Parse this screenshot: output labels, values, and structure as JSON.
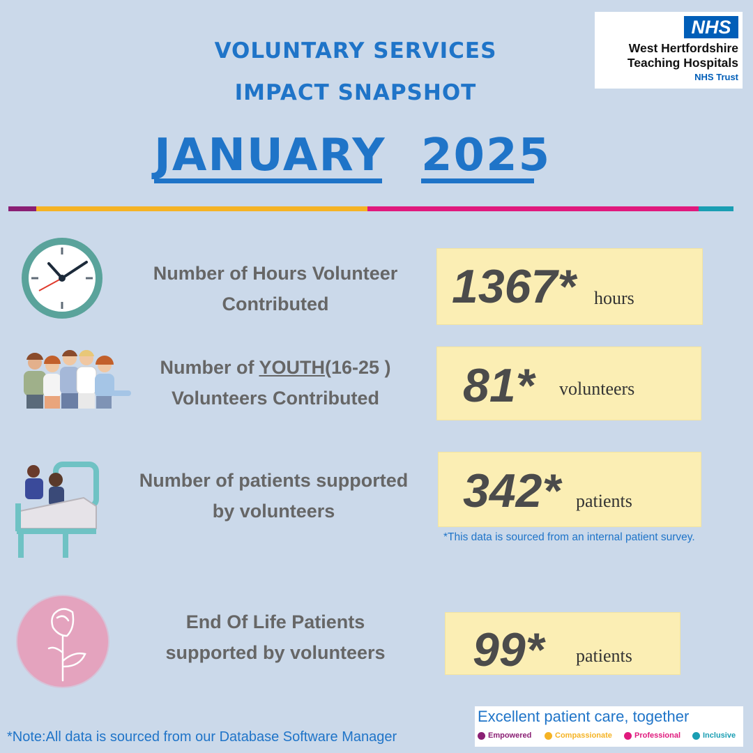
{
  "header": {
    "title_line1": "VOLUNTARY SERVICES",
    "title_line2": "IMPACT SNAPSHOT",
    "month": "JANUARY",
    "year": "2025"
  },
  "logo": {
    "badge": "NHS",
    "org_line1": "West Hertfordshire",
    "org_line2": "Teaching Hospitals",
    "trust": "NHS Trust"
  },
  "colors": {
    "title_blue": "#1f74c8",
    "background": "#cbd9ea",
    "stat_box": "#fbeeb4",
    "label_grey": "#666666",
    "empowered": "#8a1f74",
    "compassionate": "#f5b324",
    "professional": "#e0197d",
    "inclusive": "#1a9eb3"
  },
  "stats": [
    {
      "label_line1": "Number of Hours Volunteer",
      "label_line2": "Contributed",
      "value": "1367*",
      "unit": "hours",
      "icon": "clock-icon"
    },
    {
      "label_line1_pre": "Number of ",
      "label_line1_emph": "YOUTH",
      "label_line1_post": "(16-25 )",
      "label_line2": "Volunteers Contributed",
      "value": "81*",
      "unit": "volunteers",
      "icon": "youth-group-icon"
    },
    {
      "label_line1": "Number of patients supported",
      "label_line2": "by volunteers",
      "value": "342*",
      "unit": "patients",
      "icon": "hospital-bed-icon"
    },
    {
      "label_line1": "End Of Life Patients",
      "label_line2": "supported by volunteers",
      "value": "99*",
      "unit": "patients",
      "icon": "rose-icon"
    }
  ],
  "footnotes": {
    "survey": "*This data is sourced from an internal patient survey.",
    "database": "*Note:All data is sourced from our Database Software Manager"
  },
  "values_footer": {
    "tagline": "Excellent patient care, together",
    "values": [
      "Empowered",
      "Compassionate",
      "Professional",
      "Inclusive"
    ]
  }
}
